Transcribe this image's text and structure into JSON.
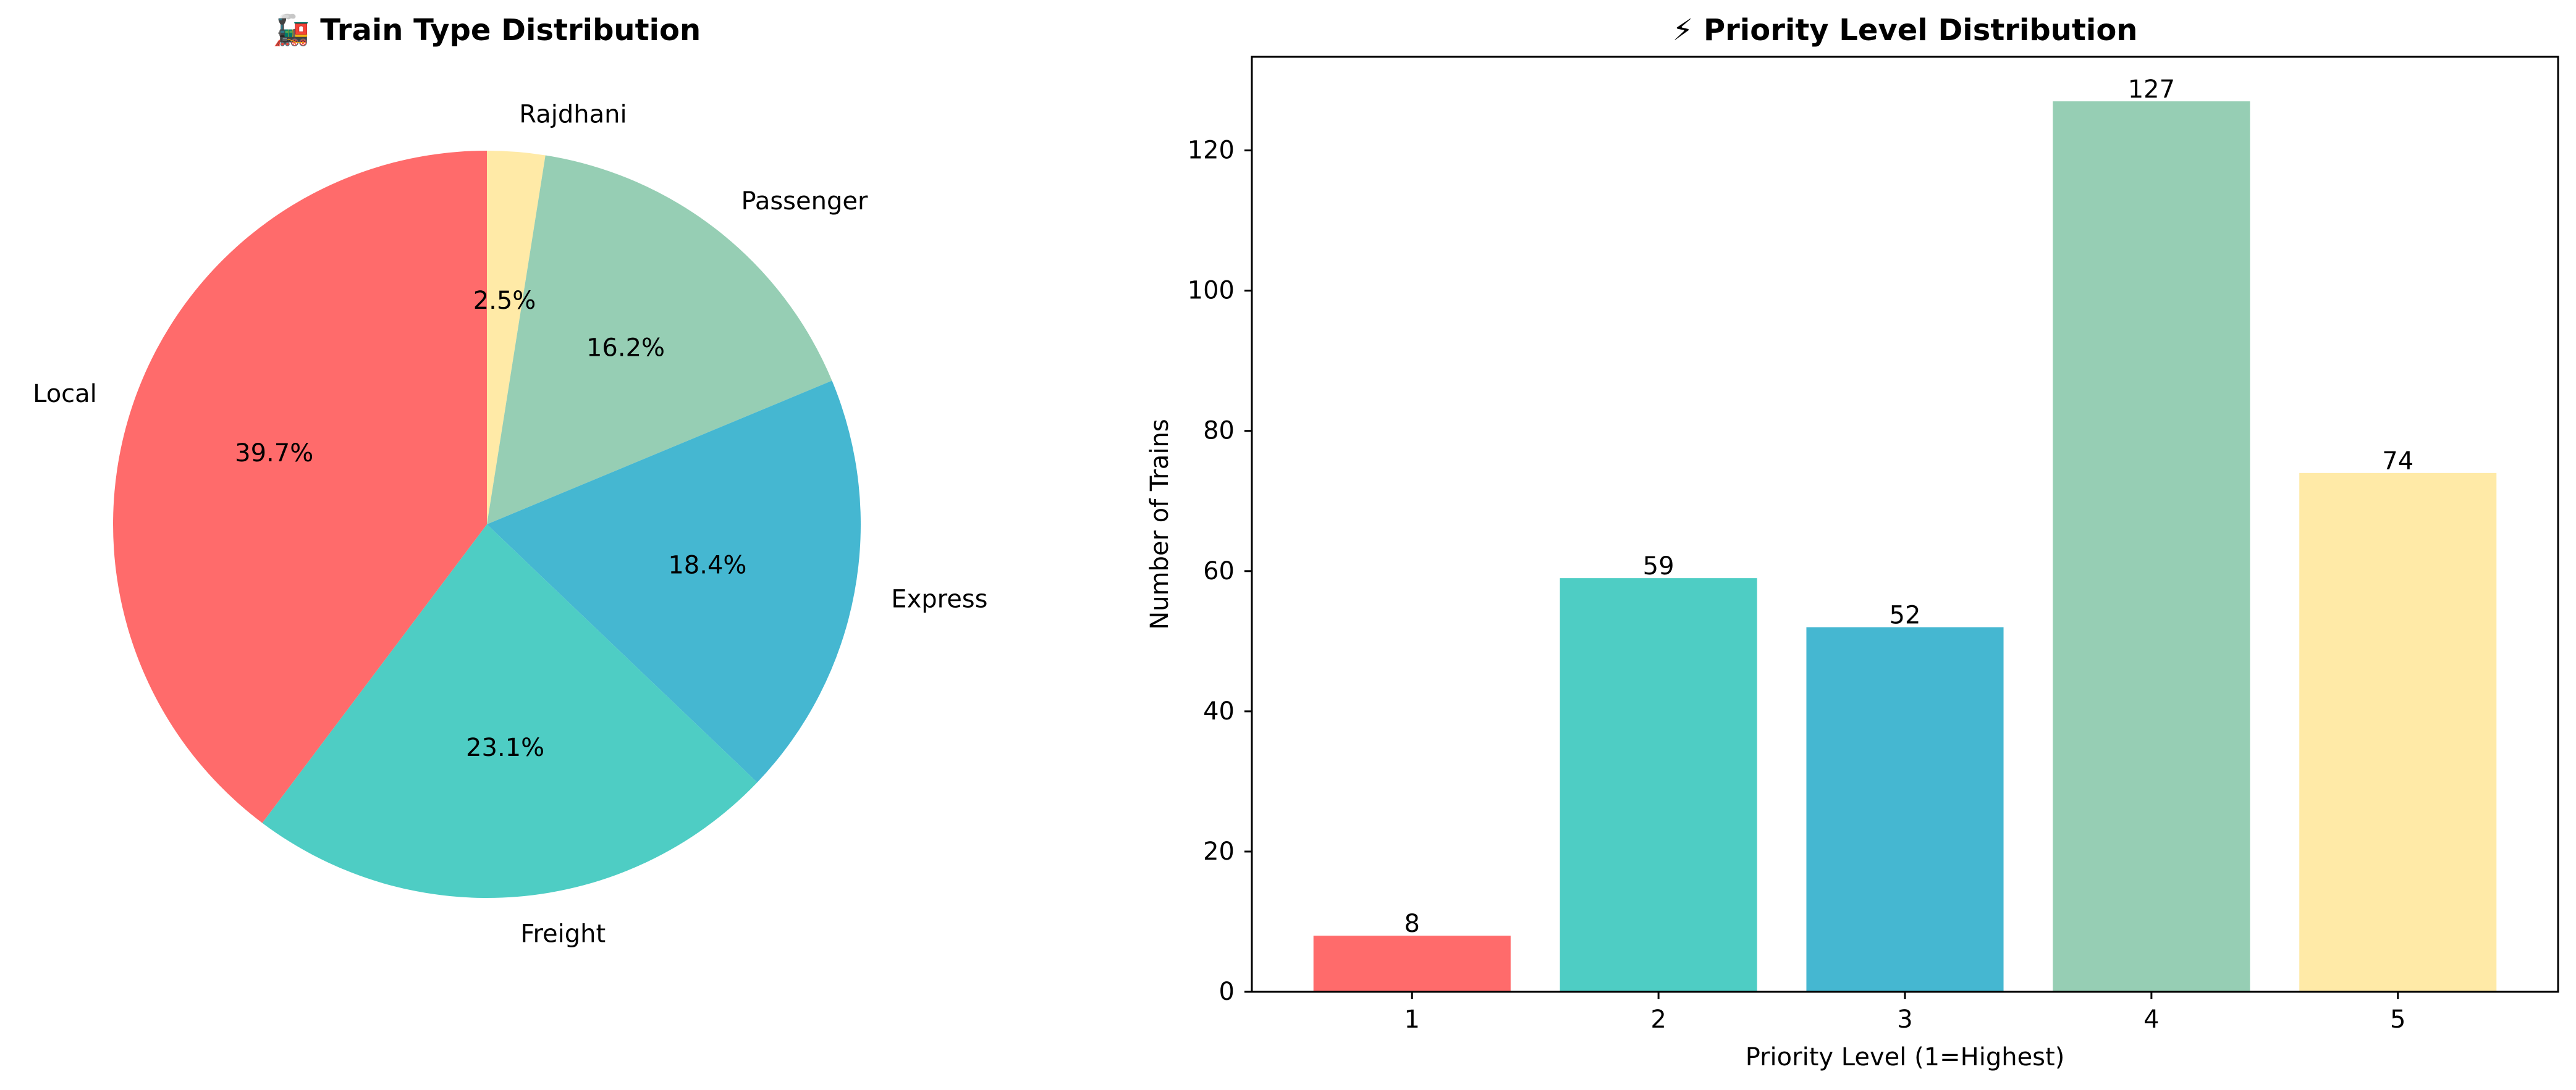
{
  "chart_data": [
    {
      "type": "pie",
      "title": "🚂 Train Type Distribution",
      "categories": [
        "Rajdhani",
        "Passenger",
        "Express",
        "Freight",
        "Local"
      ],
      "values": [
        2.5,
        16.2,
        18.4,
        23.1,
        39.7
      ],
      "value_labels": [
        "2.5%",
        "16.2%",
        "18.4%",
        "23.1%",
        "39.7%"
      ],
      "colors": [
        "#FFEAA7",
        "#96CEB4",
        "#45B7D1",
        "#4ECDC4",
        "#FF6B6B"
      ],
      "start_angle_deg": 90,
      "direction": "clockwise"
    },
    {
      "type": "bar",
      "title": "⚡ Priority Level Distribution",
      "categories": [
        "1",
        "2",
        "3",
        "4",
        "5"
      ],
      "values": [
        8,
        59,
        52,
        127,
        74
      ],
      "value_labels": [
        "8",
        "59",
        "52",
        "127",
        "74"
      ],
      "colors": [
        "#FF6B6B",
        "#4ECDC4",
        "#45B7D1",
        "#96CEB4",
        "#FFEAA7"
      ],
      "xlabel": "Priority Level (1=Highest)",
      "ylabel": "Number of Trains",
      "ylim": [
        0,
        133.35
      ],
      "yticks": [
        0,
        20,
        40,
        60,
        80,
        100,
        120
      ],
      "ytick_labels": [
        "0",
        "20",
        "40",
        "60",
        "80",
        "100",
        "120"
      ],
      "grid": false,
      "legend": "none"
    }
  ]
}
